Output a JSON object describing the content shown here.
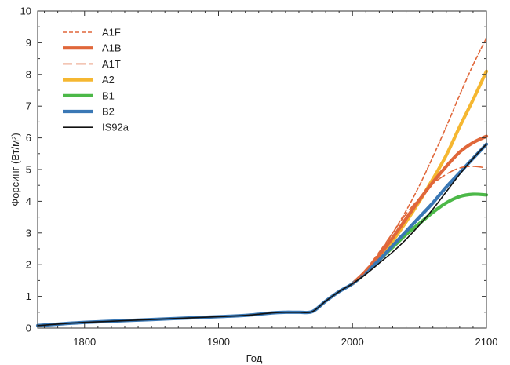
{
  "chart_data": {
    "type": "line",
    "title": "",
    "xlabel": "Год",
    "ylabel": "Форсинг (Вт/м²)",
    "xlim": [
      1765,
      2100
    ],
    "ylim": [
      0,
      10
    ],
    "xticks": [
      1800,
      1900,
      2000,
      2100
    ],
    "yticks": [
      0,
      1,
      2,
      3,
      4,
      5,
      6,
      7,
      8,
      9,
      10
    ],
    "grid": false,
    "legend_position": "top-left",
    "series": [
      {
        "name": "A1F",
        "color": "#e0673a",
        "style": "dashed-fine",
        "x": [
          2000,
          2010,
          2020,
          2030,
          2040,
          2050,
          2060,
          2070,
          2080,
          2090,
          2100
        ],
        "y": [
          1.4,
          1.8,
          2.35,
          3.0,
          3.7,
          4.5,
          5.4,
          6.35,
          7.35,
          8.3,
          9.15
        ]
      },
      {
        "name": "A1B",
        "color": "#e0673a",
        "style": "solid-thick",
        "x": [
          2000,
          2010,
          2020,
          2030,
          2040,
          2050,
          2060,
          2070,
          2080,
          2090,
          2100
        ],
        "y": [
          1.4,
          1.8,
          2.3,
          2.85,
          3.45,
          4.05,
          4.6,
          5.1,
          5.55,
          5.85,
          6.05
        ]
      },
      {
        "name": "A1T",
        "color": "#e0673a",
        "style": "dashed-long",
        "x": [
          2000,
          2010,
          2020,
          2030,
          2040,
          2050,
          2060,
          2070,
          2080,
          2090,
          2100
        ],
        "y": [
          1.4,
          1.85,
          2.4,
          3.0,
          3.6,
          4.1,
          4.55,
          4.85,
          5.05,
          5.1,
          5.05
        ]
      },
      {
        "name": "A2",
        "color": "#f5b731",
        "style": "solid-thick",
        "x": [
          2000,
          2010,
          2020,
          2030,
          2040,
          2050,
          2060,
          2070,
          2080,
          2090,
          2100
        ],
        "y": [
          1.4,
          1.75,
          2.2,
          2.75,
          3.35,
          4.0,
          4.7,
          5.45,
          6.35,
          7.2,
          8.1
        ]
      },
      {
        "name": "B1",
        "color": "#4cb848",
        "style": "solid-thick",
        "x": [
          2000,
          2010,
          2020,
          2030,
          2040,
          2050,
          2060,
          2070,
          2080,
          2090,
          2100
        ],
        "y": [
          1.4,
          1.75,
          2.15,
          2.55,
          2.95,
          3.3,
          3.65,
          3.95,
          4.15,
          4.22,
          4.2
        ]
      },
      {
        "name": "B2",
        "color": "#3a78b5",
        "style": "solid-thick",
        "x": [
          1765,
          1800,
          1850,
          1900,
          1920,
          1940,
          1950,
          1960,
          1970,
          1980,
          1990,
          2000,
          2010,
          2020,
          2030,
          2040,
          2050,
          2060,
          2070,
          2080,
          2090,
          2100
        ],
        "y": [
          0.08,
          0.18,
          0.27,
          0.36,
          0.4,
          0.48,
          0.5,
          0.5,
          0.52,
          0.85,
          1.15,
          1.4,
          1.75,
          2.15,
          2.6,
          3.05,
          3.5,
          3.95,
          4.45,
          4.9,
          5.35,
          5.8
        ]
      },
      {
        "name": "IS92a",
        "color": "#111111",
        "style": "solid-thin",
        "x": [
          1765,
          1800,
          1850,
          1900,
          1920,
          1940,
          1950,
          1960,
          1970,
          1980,
          1990,
          2000,
          2010,
          2020,
          2030,
          2040,
          2050,
          2060,
          2070,
          2080,
          2090,
          2100
        ],
        "y": [
          0.08,
          0.18,
          0.27,
          0.36,
          0.4,
          0.48,
          0.5,
          0.5,
          0.52,
          0.85,
          1.15,
          1.4,
          1.7,
          2.05,
          2.4,
          2.8,
          3.25,
          3.75,
          4.3,
          4.85,
          5.35,
          5.8
        ]
      }
    ]
  }
}
